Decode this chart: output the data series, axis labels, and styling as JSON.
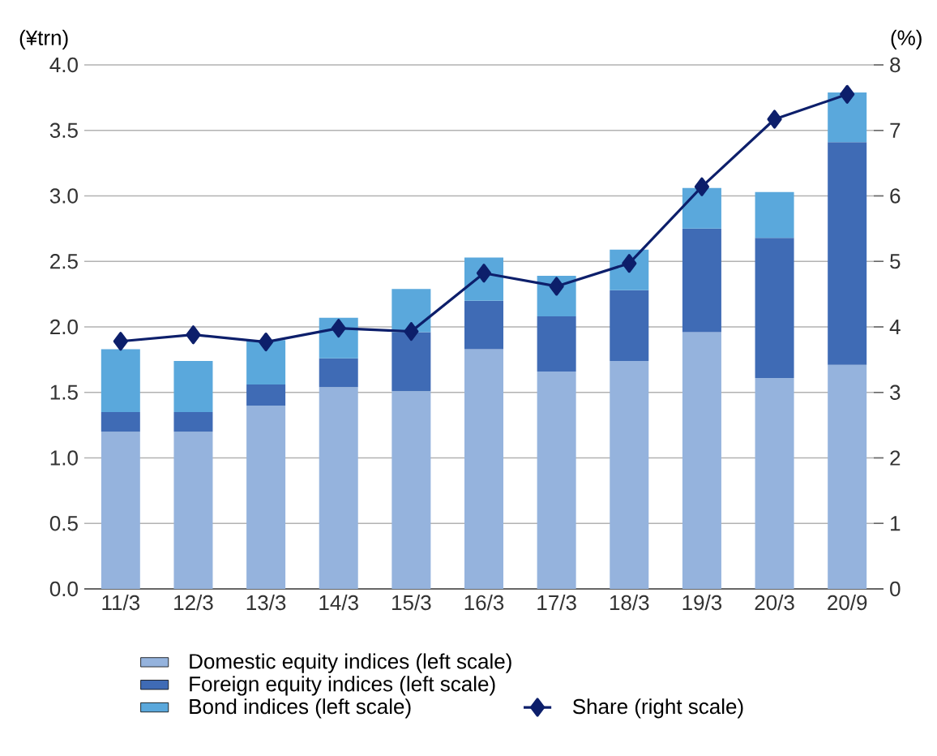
{
  "chart_data": {
    "type": "bar",
    "stacked": true,
    "ylabel": "(¥trn)",
    "y2label": "(%)",
    "categories": [
      "11/3",
      "12/3",
      "13/3",
      "14/3",
      "15/3",
      "16/3",
      "17/3",
      "18/3",
      "19/3",
      "20/3",
      "20/9"
    ],
    "series": [
      {
        "name": "Domestic equity indices (left scale)",
        "color": "#95b3dd",
        "values": [
          1.2,
          1.2,
          1.4,
          1.54,
          1.51,
          1.83,
          1.66,
          1.74,
          1.96,
          1.61,
          1.71
        ]
      },
      {
        "name": "Foreign equity indices (left scale)",
        "color": "#3f6bb5",
        "values": [
          0.15,
          0.15,
          0.16,
          0.22,
          0.45,
          0.37,
          0.42,
          0.54,
          0.79,
          1.07,
          1.7
        ]
      },
      {
        "name": "Bond indices (left scale)",
        "color": "#5aa8dc",
        "values": [
          0.48,
          0.39,
          0.34,
          0.31,
          0.33,
          0.33,
          0.31,
          0.31,
          0.31,
          0.35,
          0.38
        ]
      },
      {
        "name": "Share (right scale)",
        "type": "line",
        "axis": "y2",
        "color": "#0d1f6b",
        "marker": "diamond",
        "values": [
          3.78,
          3.88,
          3.77,
          3.98,
          3.93,
          4.82,
          4.62,
          4.97,
          6.14,
          7.17,
          7.55
        ]
      }
    ],
    "ylim": [
      0,
      4
    ],
    "yticks": [
      {
        "value": 0,
        "label": "0.0"
      },
      {
        "value": 0.5,
        "label": "0.5"
      },
      {
        "value": 1,
        "label": "1.0"
      },
      {
        "value": 1.5,
        "label": "1.5"
      },
      {
        "value": 2,
        "label": "2.0"
      },
      {
        "value": 2.5,
        "label": "2.5"
      },
      {
        "value": 3,
        "label": "3.0"
      },
      {
        "value": 3.5,
        "label": "3.5"
      },
      {
        "value": 4,
        "label": "4.0"
      }
    ],
    "y2lim": [
      0,
      8
    ],
    "y2ticks": [
      0,
      1,
      2,
      3,
      4,
      5,
      6,
      7,
      8
    ],
    "grid": "y",
    "legend": "bottom"
  }
}
